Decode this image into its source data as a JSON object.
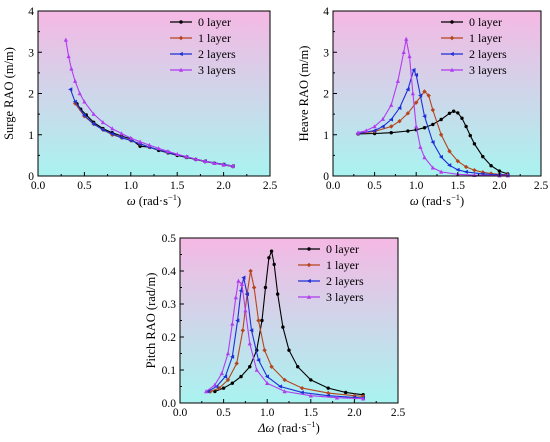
{
  "colors": {
    "series": [
      "#000000",
      "#b5451f",
      "#1f2fd6",
      "#b13cf0"
    ],
    "bg_top": "#f5b8e4",
    "bg_bottom": "#a9f3f0"
  },
  "chart_data": [
    {
      "type": "line",
      "ylabel": "Surge RAO (m/m)",
      "xlabel_prefix": "ω",
      "xlabel_unit": "rad·s",
      "xlabel_exp": "−1",
      "xlim": [
        0,
        2.5
      ],
      "ylim": [
        0,
        4
      ],
      "xticks": [
        "0.0",
        "0.5",
        "1.0",
        "1.5",
        "2.0",
        "2.5"
      ],
      "yticks": [
        "0",
        "1",
        "2",
        "3",
        "4"
      ],
      "legend_position": "top-right",
      "series": [
        {
          "name": "0 layer",
          "points": [
            [
              0.42,
              1.75
            ],
            [
              0.46,
              1.62
            ],
            [
              0.52,
              1.48
            ],
            [
              0.6,
              1.3
            ],
            [
              0.7,
              1.15
            ],
            [
              0.8,
              1.05
            ],
            [
              0.9,
              0.97
            ],
            [
              1.0,
              0.9
            ],
            [
              1.1,
              0.72
            ],
            [
              1.2,
              0.7
            ],
            [
              1.3,
              0.62
            ],
            [
              1.4,
              0.56
            ],
            [
              1.5,
              0.5
            ],
            [
              1.6,
              0.45
            ],
            [
              1.7,
              0.4
            ],
            [
              1.8,
              0.35
            ],
            [
              1.9,
              0.31
            ],
            [
              2.0,
              0.27
            ],
            [
              2.1,
              0.23
            ]
          ]
        },
        {
          "name": "1 layer",
          "points": [
            [
              0.4,
              1.76
            ],
            [
              0.5,
              1.45
            ],
            [
              0.6,
              1.26
            ],
            [
              0.7,
              1.12
            ],
            [
              0.8,
              1.0
            ],
            [
              0.9,
              0.93
            ],
            [
              1.0,
              0.86
            ],
            [
              1.1,
              0.78
            ],
            [
              1.2,
              0.7
            ],
            [
              1.4,
              0.57
            ],
            [
              1.6,
              0.46
            ],
            [
              1.8,
              0.36
            ],
            [
              2.0,
              0.28
            ],
            [
              2.1,
              0.24
            ]
          ]
        },
        {
          "name": "2 layers",
          "points": [
            [
              0.35,
              2.1
            ],
            [
              0.4,
              1.8
            ],
            [
              0.5,
              1.47
            ],
            [
              0.6,
              1.26
            ],
            [
              0.7,
              1.12
            ],
            [
              0.8,
              1.02
            ],
            [
              0.9,
              0.93
            ],
            [
              1.0,
              0.86
            ],
            [
              1.1,
              0.78
            ],
            [
              1.2,
              0.7
            ],
            [
              1.4,
              0.57
            ],
            [
              1.6,
              0.46
            ],
            [
              1.8,
              0.36
            ],
            [
              2.0,
              0.28
            ],
            [
              2.1,
              0.24
            ]
          ]
        },
        {
          "name": "3 layers",
          "points": [
            [
              0.3,
              3.3
            ],
            [
              0.33,
              2.9
            ],
            [
              0.36,
              2.6
            ],
            [
              0.4,
              2.3
            ],
            [
              0.45,
              2.0
            ],
            [
              0.5,
              1.8
            ],
            [
              0.6,
              1.5
            ],
            [
              0.7,
              1.3
            ],
            [
              0.8,
              1.15
            ],
            [
              0.9,
              1.03
            ],
            [
              1.0,
              0.92
            ],
            [
              1.1,
              0.83
            ],
            [
              1.2,
              0.75
            ],
            [
              1.3,
              0.67
            ],
            [
              1.4,
              0.6
            ],
            [
              1.5,
              0.53
            ],
            [
              1.6,
              0.47
            ],
            [
              1.7,
              0.41
            ],
            [
              1.8,
              0.36
            ],
            [
              1.9,
              0.31
            ],
            [
              2.0,
              0.27
            ],
            [
              2.1,
              0.24
            ]
          ]
        }
      ]
    },
    {
      "type": "line",
      "ylabel": "Heave RAO (m/m)",
      "xlabel_prefix": "ω",
      "xlabel_unit": "rad·s",
      "xlabel_exp": "−1",
      "xlim": [
        0,
        2.5
      ],
      "ylim": [
        0,
        4
      ],
      "xticks": [
        "0.0",
        "0.5",
        "1.0",
        "1.5",
        "2.0",
        "2.5"
      ],
      "yticks": [
        "0",
        "1",
        "2",
        "3",
        "4"
      ],
      "legend_position": "top-right",
      "series": [
        {
          "name": "0 layer",
          "points": [
            [
              0.3,
              1.02
            ],
            [
              0.5,
              1.03
            ],
            [
              0.7,
              1.05
            ],
            [
              0.9,
              1.09
            ],
            [
              1.0,
              1.12
            ],
            [
              1.1,
              1.17
            ],
            [
              1.2,
              1.25
            ],
            [
              1.3,
              1.37
            ],
            [
              1.4,
              1.52
            ],
            [
              1.45,
              1.57
            ],
            [
              1.5,
              1.53
            ],
            [
              1.55,
              1.4
            ],
            [
              1.6,
              1.2
            ],
            [
              1.65,
              0.98
            ],
            [
              1.7,
              0.78
            ],
            [
              1.8,
              0.47
            ],
            [
              1.9,
              0.25
            ],
            [
              2.0,
              0.12
            ],
            [
              2.1,
              0.05
            ]
          ]
        },
        {
          "name": "1 layer",
          "points": [
            [
              0.3,
              1.03
            ],
            [
              0.5,
              1.08
            ],
            [
              0.7,
              1.2
            ],
            [
              0.8,
              1.33
            ],
            [
              0.9,
              1.52
            ],
            [
              1.0,
              1.78
            ],
            [
              1.1,
              2.05
            ],
            [
              1.15,
              1.95
            ],
            [
              1.2,
              1.6
            ],
            [
              1.3,
              1.0
            ],
            [
              1.4,
              0.6
            ],
            [
              1.5,
              0.36
            ],
            [
              1.6,
              0.22
            ],
            [
              1.7,
              0.14
            ],
            [
              1.8,
              0.09
            ],
            [
              1.9,
              0.06
            ],
            [
              2.0,
              0.04
            ],
            [
              2.1,
              0.03
            ]
          ]
        },
        {
          "name": "2 layers",
          "points": [
            [
              0.3,
              1.03
            ],
            [
              0.5,
              1.1
            ],
            [
              0.6,
              1.2
            ],
            [
              0.7,
              1.37
            ],
            [
              0.8,
              1.65
            ],
            [
              0.9,
              2.1
            ],
            [
              0.97,
              2.57
            ],
            [
              1.0,
              2.45
            ],
            [
              1.05,
              1.95
            ],
            [
              1.1,
              1.45
            ],
            [
              1.2,
              0.82
            ],
            [
              1.3,
              0.46
            ],
            [
              1.4,
              0.26
            ],
            [
              1.5,
              0.15
            ],
            [
              1.6,
              0.1
            ],
            [
              1.8,
              0.05
            ],
            [
              2.0,
              0.03
            ],
            [
              2.1,
              0.02
            ]
          ]
        },
        {
          "name": "3 layers",
          "points": [
            [
              0.3,
              1.05
            ],
            [
              0.4,
              1.1
            ],
            [
              0.5,
              1.2
            ],
            [
              0.6,
              1.38
            ],
            [
              0.7,
              1.72
            ],
            [
              0.78,
              2.3
            ],
            [
              0.85,
              3.0
            ],
            [
              0.88,
              3.32
            ],
            [
              0.92,
              2.9
            ],
            [
              0.96,
              2.0
            ],
            [
              1.0,
              1.2
            ],
            [
              1.05,
              0.7
            ],
            [
              1.1,
              0.45
            ],
            [
              1.2,
              0.2
            ],
            [
              1.3,
              0.1
            ],
            [
              1.5,
              0.04
            ],
            [
              1.7,
              0.02
            ],
            [
              2.0,
              0.01
            ],
            [
              2.1,
              0.01
            ]
          ]
        }
      ]
    },
    {
      "type": "line",
      "ylabel": "Pitch RAO (rad/m)",
      "xlabel_prefix": "Δω",
      "xlabel_unit": "rad·s",
      "xlabel_exp": "−1",
      "xlim": [
        0,
        2.5
      ],
      "ylim": [
        0,
        0.5
      ],
      "xticks": [
        "0.0",
        "0.5",
        "1.0",
        "1.5",
        "2.0",
        "2.5"
      ],
      "yticks": [
        "0.0",
        "0.1",
        "0.2",
        "0.3",
        "0.4",
        "0.5"
      ],
      "legend_position": "top-right",
      "series": [
        {
          "name": "0 layer",
          "points": [
            [
              0.4,
              0.035
            ],
            [
              0.5,
              0.045
            ],
            [
              0.6,
              0.06
            ],
            [
              0.7,
              0.08
            ],
            [
              0.8,
              0.11
            ],
            [
              0.88,
              0.16
            ],
            [
              0.94,
              0.25
            ],
            [
              0.98,
              0.35
            ],
            [
              1.02,
              0.44
            ],
            [
              1.05,
              0.46
            ],
            [
              1.08,
              0.42
            ],
            [
              1.12,
              0.33
            ],
            [
              1.18,
              0.23
            ],
            [
              1.25,
              0.16
            ],
            [
              1.35,
              0.11
            ],
            [
              1.5,
              0.07
            ],
            [
              1.7,
              0.045
            ],
            [
              1.9,
              0.032
            ],
            [
              2.1,
              0.025
            ]
          ]
        },
        {
          "name": "1 layer",
          "points": [
            [
              0.35,
              0.035
            ],
            [
              0.45,
              0.045
            ],
            [
              0.55,
              0.07
            ],
            [
              0.65,
              0.12
            ],
            [
              0.72,
              0.22
            ],
            [
              0.77,
              0.33
            ],
            [
              0.81,
              0.4
            ],
            [
              0.85,
              0.35
            ],
            [
              0.9,
              0.25
            ],
            [
              0.97,
              0.16
            ],
            [
              1.05,
              0.11
            ],
            [
              1.2,
              0.07
            ],
            [
              1.4,
              0.045
            ],
            [
              1.7,
              0.03
            ],
            [
              2.0,
              0.022
            ],
            [
              2.1,
              0.02
            ]
          ]
        },
        {
          "name": "2 layers",
          "points": [
            [
              0.32,
              0.035
            ],
            [
              0.42,
              0.05
            ],
            [
              0.52,
              0.08
            ],
            [
              0.6,
              0.14
            ],
            [
              0.66,
              0.25
            ],
            [
              0.7,
              0.34
            ],
            [
              0.73,
              0.38
            ],
            [
              0.77,
              0.33
            ],
            [
              0.82,
              0.22
            ],
            [
              0.9,
              0.13
            ],
            [
              1.0,
              0.08
            ],
            [
              1.15,
              0.05
            ],
            [
              1.4,
              0.032
            ],
            [
              1.7,
              0.022
            ],
            [
              2.0,
              0.017
            ],
            [
              2.1,
              0.015
            ]
          ]
        },
        {
          "name": "3 layers",
          "points": [
            [
              0.3,
              0.035
            ],
            [
              0.4,
              0.055
            ],
            [
              0.48,
              0.09
            ],
            [
              0.55,
              0.15
            ],
            [
              0.6,
              0.24
            ],
            [
              0.64,
              0.32
            ],
            [
              0.67,
              0.37
            ],
            [
              0.71,
              0.36
            ],
            [
              0.75,
              0.28
            ],
            [
              0.8,
              0.18
            ],
            [
              0.88,
              0.1
            ],
            [
              1.0,
              0.06
            ],
            [
              1.2,
              0.035
            ],
            [
              1.5,
              0.022
            ],
            [
              1.8,
              0.016
            ],
            [
              2.1,
              0.013
            ]
          ]
        }
      ]
    }
  ]
}
